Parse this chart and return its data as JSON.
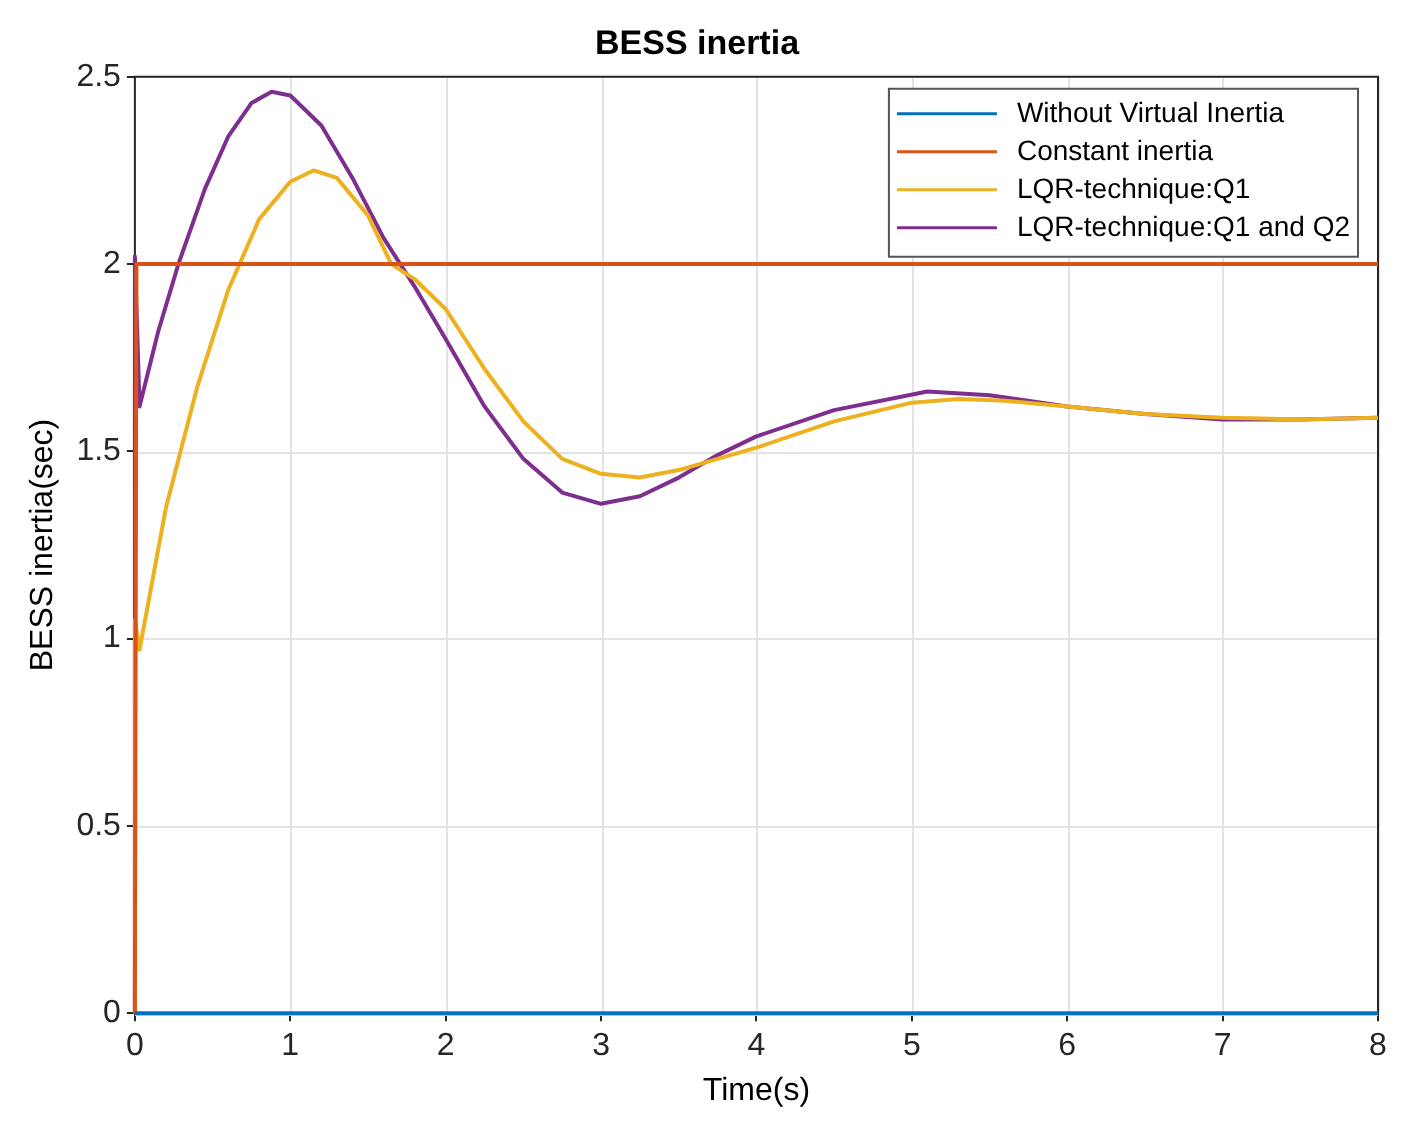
{
  "chart_data": {
    "type": "line",
    "title": "BESS inertia",
    "xlabel": "Time(s)",
    "ylabel": "BESS inertia(sec)",
    "xlim": [
      0,
      8
    ],
    "ylim": [
      0,
      2.5
    ],
    "xticks": [
      0,
      1,
      2,
      3,
      4,
      5,
      6,
      7,
      8
    ],
    "yticks": [
      0,
      0.5,
      1,
      1.5,
      2,
      2.5
    ],
    "grid": true,
    "legend": "top right",
    "marker": "none",
    "line_style": "solid",
    "series": [
      {
        "name": "Without Virtual Inertia",
        "color": "#0072bd",
        "x": [
          0,
          8
        ],
        "values": [
          0,
          0
        ]
      },
      {
        "name": "Constant inertia",
        "color": "#d95319",
        "x": [
          0,
          0.01,
          8
        ],
        "values": [
          0,
          2,
          2
        ]
      },
      {
        "name": "LQR-technique:Q1",
        "color": "#edb120",
        "x": [
          0,
          0,
          0.03,
          0.2,
          0.4,
          0.6,
          0.8,
          1.0,
          1.15,
          1.3,
          1.5,
          1.65,
          1.8,
          2.0,
          2.25,
          2.5,
          2.75,
          3.0,
          3.25,
          3.5,
          3.75,
          4.0,
          4.5,
          5.0,
          5.3,
          5.6,
          6.0,
          6.5,
          7.0,
          7.5,
          8.0
        ],
        "values": [
          0,
          1.05,
          0.97,
          1.35,
          1.67,
          1.93,
          2.12,
          2.22,
          2.25,
          2.23,
          2.13,
          2.0,
          1.96,
          1.88,
          1.72,
          1.58,
          1.48,
          1.44,
          1.43,
          1.45,
          1.48,
          1.51,
          1.58,
          1.63,
          1.64,
          1.635,
          1.62,
          1.6,
          1.59,
          1.585,
          1.59
        ]
      },
      {
        "name": "LQR-technique:Q1 and Q2",
        "color": "#7e2f8e",
        "x": [
          0,
          0,
          0.03,
          0.15,
          0.28,
          0.45,
          0.6,
          0.75,
          0.88,
          1.0,
          1.2,
          1.4,
          1.6,
          1.8,
          2.0,
          2.25,
          2.5,
          2.75,
          3.0,
          3.25,
          3.5,
          3.75,
          4.0,
          4.5,
          5.1,
          5.5,
          6.0,
          6.5,
          7.0,
          7.5,
          8.0
        ],
        "values": [
          0,
          2.02,
          1.62,
          1.82,
          2.0,
          2.2,
          2.34,
          2.43,
          2.46,
          2.45,
          2.37,
          2.23,
          2.07,
          1.94,
          1.8,
          1.62,
          1.48,
          1.39,
          1.36,
          1.38,
          1.43,
          1.49,
          1.54,
          1.61,
          1.66,
          1.65,
          1.62,
          1.6,
          1.585,
          1.585,
          1.59
        ]
      }
    ]
  }
}
